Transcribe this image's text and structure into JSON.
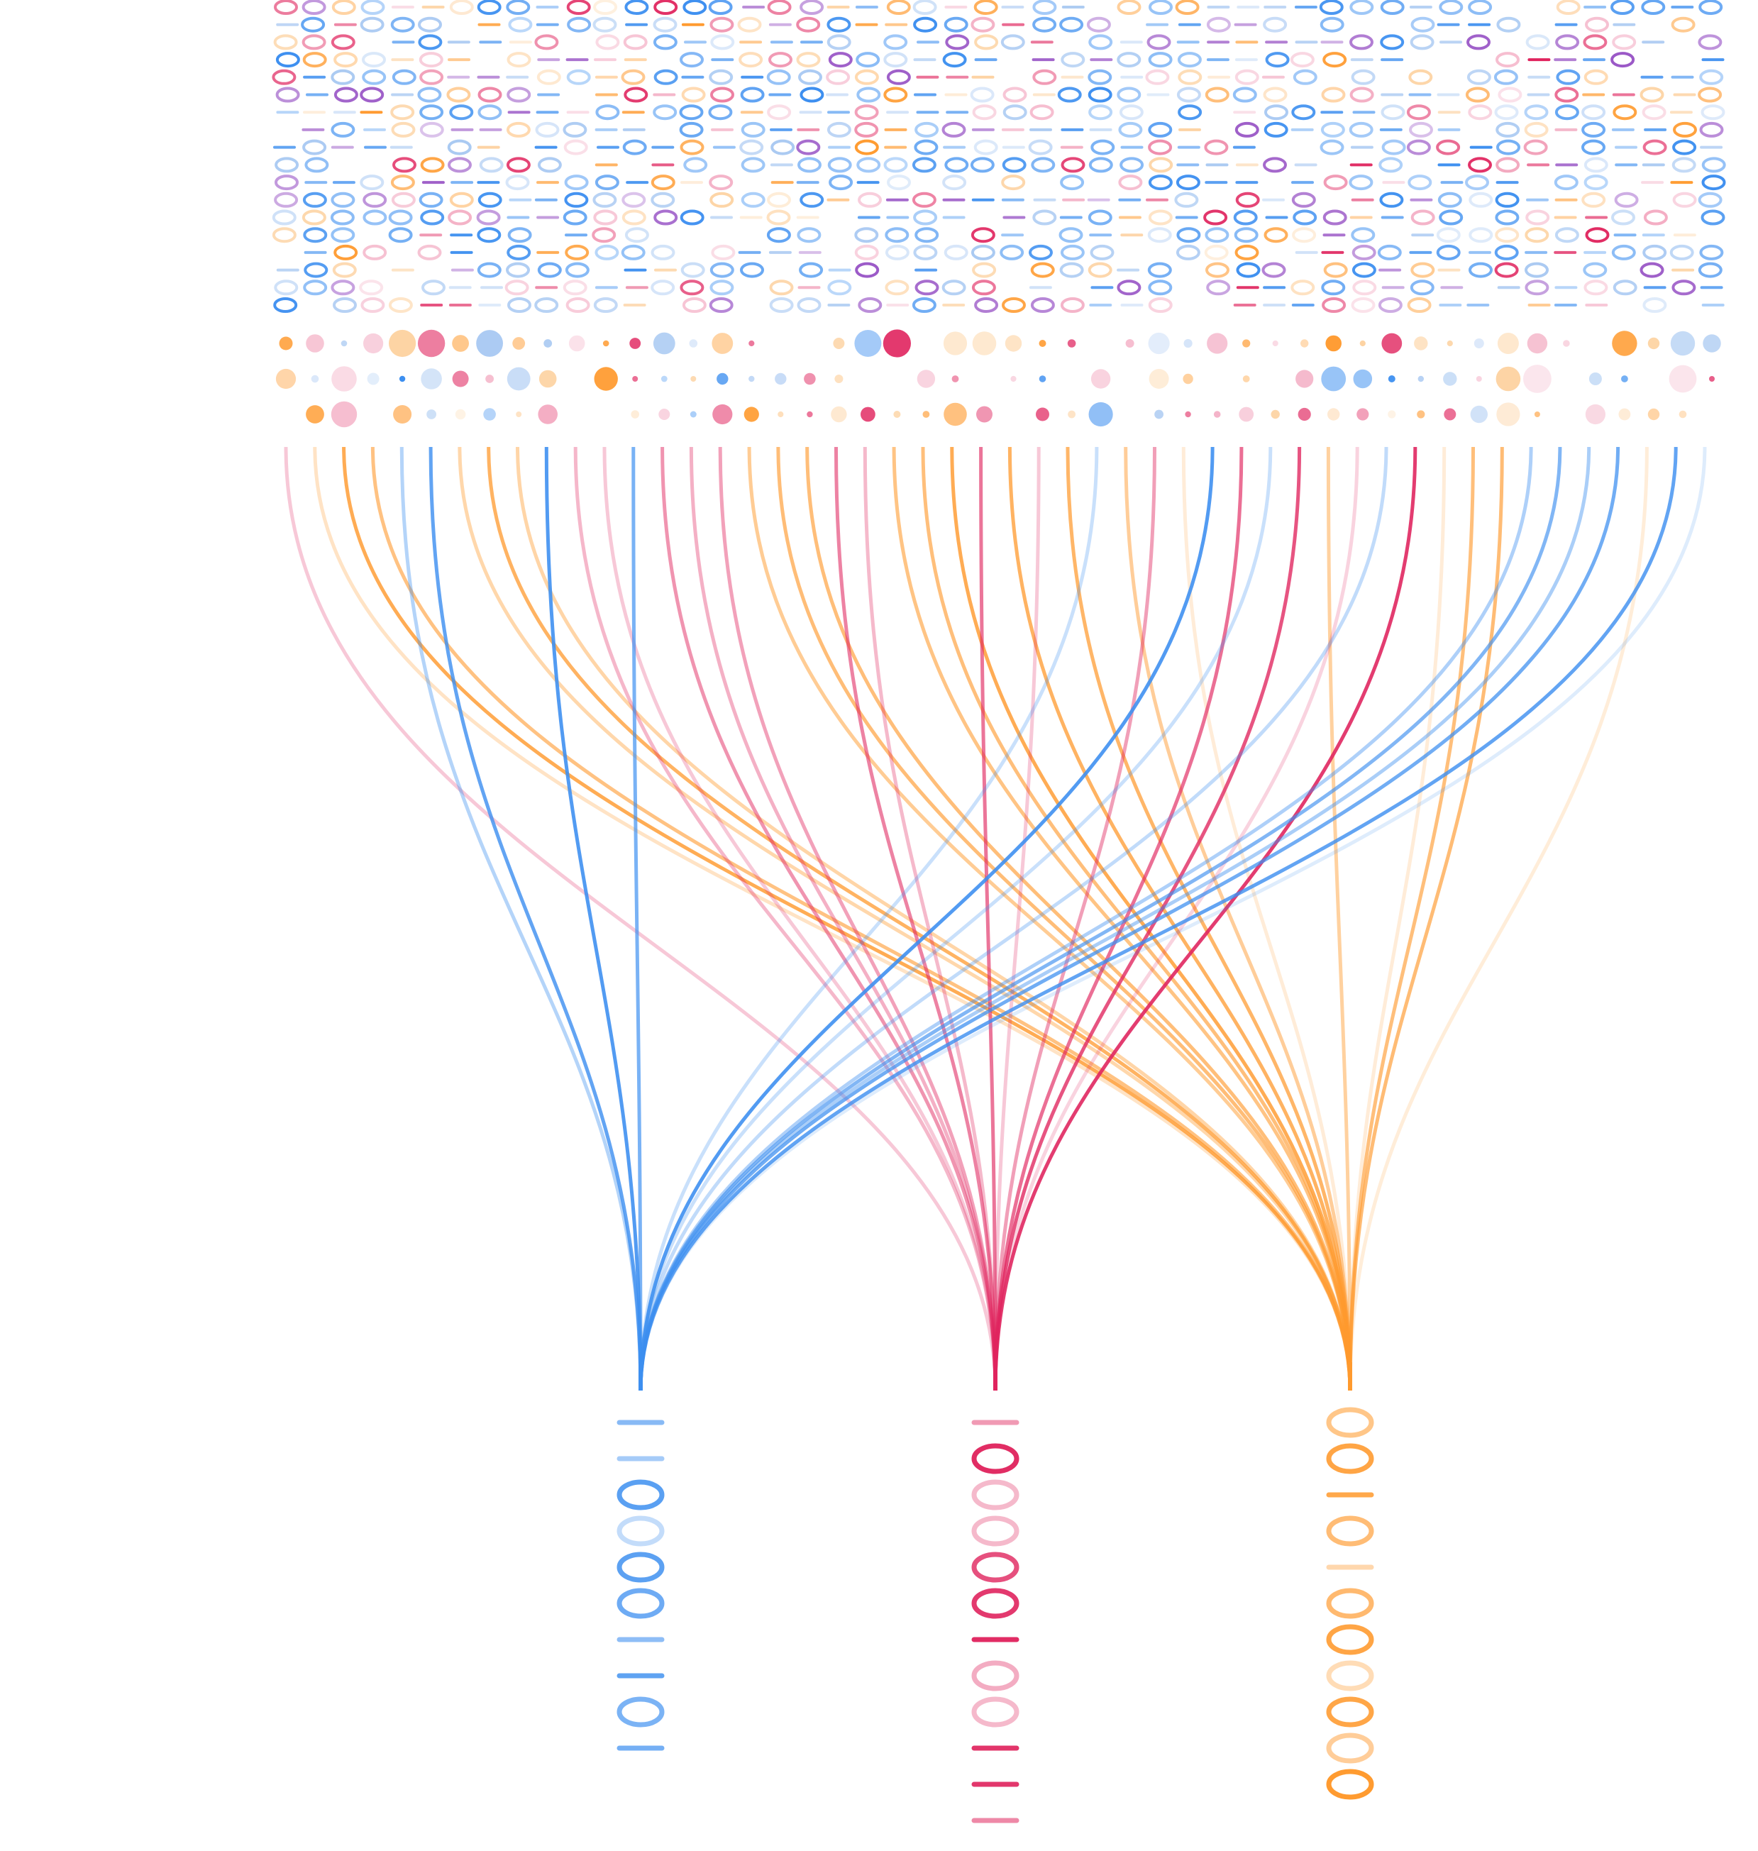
{
  "palette": {
    "blue": "#3d8ff0",
    "pink": "#e0245e",
    "orange": "#ff9a2e",
    "purple": "#9b59c7",
    "light_blue": "#a9c9f2",
    "light_pink": "#f4b3c8",
    "light_orange": "#fdd3a3"
  },
  "column_colors": [
    "blue",
    "pink",
    "orange"
  ],
  "glyph_set": [
    "0",
    "1"
  ],
  "matrix": {
    "rows": 18,
    "cols": 50
  },
  "dot_rows": 3,
  "glyph_columns": [
    {
      "color": "blue",
      "glyphs": "1100001101"
    },
    {
      "color": "pink",
      "glyphs": "100000100111"
    },
    {
      "color": "orange",
      "glyphs": "00101000000"
    }
  ]
}
